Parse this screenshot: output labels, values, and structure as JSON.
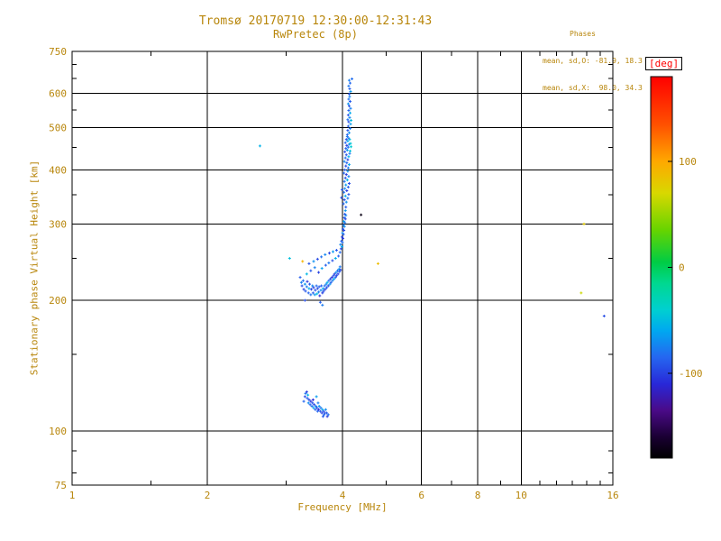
{
  "figure": {
    "title": "Tromsø 20170719 12:30:00-12:31:43",
    "subtitle": "RwPretec (8p)",
    "phases_header": "Phases",
    "phases_line1": "mean, sd,O: -81.9, 18.3",
    "phases_line2": "mean, sd,X:  98.0, 34.3",
    "colors": {
      "text_accent": "#b8860b",
      "deg_label": "#ff0000",
      "grid": "#000000",
      "background": "#ffffff"
    }
  },
  "chart_data": {
    "type": "scatter",
    "title": "Tromsø 20170719 12:30:00-12:31:43",
    "subtitle": "RwPretec (8p)",
    "xlabel": "Frequency [MHz]",
    "ylabel": "Stationary phase Virtual Height [km]",
    "x_scale": "log",
    "y_scale": "log",
    "xlim": [
      1,
      16
    ],
    "ylim": [
      75,
      750
    ],
    "x_ticks": [
      1,
      2,
      4,
      6,
      8,
      10,
      16
    ],
    "y_ticks": [
      75,
      100,
      200,
      300,
      400,
      500,
      600,
      750
    ],
    "x_minor_ticks": [
      1.5,
      3,
      5,
      7,
      9,
      11,
      12,
      13,
      14,
      15
    ],
    "y_minor_ticks": [
      80,
      90,
      150,
      250,
      350,
      450,
      550,
      650,
      700
    ],
    "grid": true,
    "colorbar": {
      "label": "[deg]",
      "ticks": [
        100,
        0,
        -100
      ],
      "range": [
        -180,
        180
      ]
    },
    "colormap": [
      [
        -180,
        "#000000"
      ],
      [
        -160,
        "#1a0033"
      ],
      [
        -135,
        "#4a0a88"
      ],
      [
        -110,
        "#2828d8"
      ],
      [
        -85,
        "#2566f0"
      ],
      [
        -60,
        "#00a8f0"
      ],
      [
        -40,
        "#00d0d0"
      ],
      [
        -15,
        "#00d890"
      ],
      [
        5,
        "#00cc44"
      ],
      [
        35,
        "#66d400"
      ],
      [
        70,
        "#d8d800"
      ],
      [
        100,
        "#ffa800"
      ],
      [
        135,
        "#ff5000"
      ],
      [
        180,
        "#ff0000"
      ]
    ],
    "points_format": [
      "frequency_mhz",
      "virtual_height_km",
      "phase_deg"
    ],
    "points": [
      [
        3.28,
        117,
        -85
      ],
      [
        3.3,
        120,
        -95
      ],
      [
        3.31,
        122,
        -78
      ],
      [
        3.33,
        123,
        -102
      ],
      [
        3.34,
        119,
        -88
      ],
      [
        3.36,
        116,
        -70
      ],
      [
        3.37,
        118,
        -98
      ],
      [
        3.39,
        115,
        -86
      ],
      [
        3.4,
        117,
        -105
      ],
      [
        3.42,
        114,
        -80
      ],
      [
        3.43,
        116,
        -92
      ],
      [
        3.45,
        113,
        -62
      ],
      [
        3.46,
        115,
        -99
      ],
      [
        3.48,
        112,
        -87
      ],
      [
        3.49,
        114,
        -74
      ],
      [
        3.51,
        113,
        -96
      ],
      [
        3.52,
        111,
        -84
      ],
      [
        3.54,
        112,
        -108
      ],
      [
        3.55,
        114,
        -68
      ],
      [
        3.57,
        111,
        -90
      ],
      [
        3.58,
        113,
        -79
      ],
      [
        3.6,
        110,
        -101
      ],
      [
        3.61,
        112,
        -58
      ],
      [
        3.63,
        111,
        -94
      ],
      [
        3.64,
        109,
        -83
      ],
      [
        3.66,
        110,
        -97
      ],
      [
        3.67,
        112,
        -72
      ],
      [
        3.69,
        110,
        -89
      ],
      [
        3.7,
        108,
        -103
      ],
      [
        3.72,
        109,
        -81
      ],
      [
        3.35,
        121,
        -55
      ],
      [
        3.44,
        118,
        -110
      ],
      [
        3.53,
        116,
        -76
      ],
      [
        3.62,
        108,
        -91
      ],
      [
        3.5,
        120,
        -64
      ],
      [
        3.22,
        226,
        -88
      ],
      [
        3.24,
        220,
        -75
      ],
      [
        3.25,
        216,
        -95
      ],
      [
        3.27,
        222,
        -82
      ],
      [
        3.28,
        212,
        -100
      ],
      [
        3.3,
        218,
        -68
      ],
      [
        3.31,
        210,
        -90
      ],
      [
        3.33,
        215,
        -78
      ],
      [
        3.34,
        221,
        -105
      ],
      [
        3.36,
        208,
        -85
      ],
      [
        3.37,
        213,
        -58
      ],
      [
        3.38,
        218,
        -92
      ],
      [
        3.4,
        206,
        -80
      ],
      [
        3.41,
        212,
        -98
      ],
      [
        3.43,
        216,
        -72
      ],
      [
        3.44,
        208,
        -88
      ],
      [
        3.45,
        214,
        -102
      ],
      [
        3.47,
        206,
        -65
      ],
      [
        3.48,
        211,
        -94
      ],
      [
        3.5,
        216,
        -83
      ],
      [
        3.51,
        207,
        -50
      ],
      [
        3.52,
        213,
        -96
      ],
      [
        3.54,
        209,
        -77
      ],
      [
        3.55,
        215,
        -89
      ],
      [
        3.56,
        205,
        -107
      ],
      [
        3.58,
        211,
        -70
      ],
      [
        3.59,
        216,
        -86
      ],
      [
        3.61,
        208,
        -99
      ],
      [
        3.62,
        213,
        -61
      ],
      [
        3.63,
        210,
        -93
      ],
      [
        3.65,
        216,
        -82
      ],
      [
        3.66,
        212,
        -104
      ],
      [
        3.68,
        218,
        -73
      ],
      [
        3.69,
        214,
        -90
      ],
      [
        3.7,
        220,
        -55
      ],
      [
        3.72,
        216,
        -97
      ],
      [
        3.73,
        222,
        -84
      ],
      [
        3.75,
        218,
        -66
      ],
      [
        3.76,
        224,
        -95
      ],
      [
        3.77,
        220,
        -87
      ],
      [
        3.79,
        226,
        -108
      ],
      [
        3.8,
        222,
        -76
      ],
      [
        3.82,
        228,
        -91
      ],
      [
        3.83,
        224,
        -59
      ],
      [
        3.84,
        230,
        -100
      ],
      [
        3.86,
        226,
        -85
      ],
      [
        3.87,
        232,
        -71
      ],
      [
        3.88,
        228,
        -96
      ],
      [
        3.9,
        234,
        -80
      ],
      [
        3.91,
        230,
        -103
      ],
      [
        3.93,
        236,
        -67
      ],
      [
        3.94,
        233,
        -89
      ],
      [
        3.95,
        239,
        -78
      ],
      [
        3.96,
        235,
        -98
      ],
      [
        3.33,
        230,
        -52
      ],
      [
        3.4,
        234,
        -90
      ],
      [
        3.47,
        238,
        -75
      ],
      [
        3.54,
        232,
        -100
      ],
      [
        3.6,
        237,
        -63
      ],
      [
        3.67,
        241,
        -88
      ],
      [
        3.73,
        244,
        -79
      ],
      [
        3.8,
        247,
        -94
      ],
      [
        3.86,
        250,
        -56
      ],
      [
        3.92,
        253,
        -86
      ],
      [
        3.37,
        243,
        -92
      ],
      [
        3.45,
        246,
        -69
      ],
      [
        3.52,
        249,
        -97
      ],
      [
        3.59,
        252,
        -81
      ],
      [
        3.66,
        255,
        -73
      ],
      [
        3.74,
        257,
        -99
      ],
      [
        3.81,
        259,
        -65
      ],
      [
        3.88,
        261,
        -90
      ],
      [
        3.57,
        198,
        -88
      ],
      [
        3.61,
        195,
        -77
      ],
      [
        3.3,
        200,
        -95
      ],
      [
        3.95,
        258,
        -84
      ],
      [
        3.97,
        263,
        -95
      ],
      [
        3.96,
        269,
        -72
      ],
      [
        3.98,
        274,
        -89
      ],
      [
        3.99,
        266,
        -60
      ],
      [
        3.99,
        280,
        -97
      ],
      [
        4.0,
        272,
        -82
      ],
      [
        4.0,
        286,
        -68
      ],
      [
        4.01,
        292,
        -91
      ],
      [
        4.01,
        278,
        -104
      ],
      [
        4.02,
        298,
        -76
      ],
      [
        4.02,
        284,
        -88
      ],
      [
        4.03,
        304,
        -63
      ],
      [
        4.03,
        290,
        -99
      ],
      [
        4.04,
        310,
        -85
      ],
      [
        4.04,
        296,
        -71
      ],
      [
        4.05,
        316,
        -93
      ],
      [
        4.05,
        302,
        -80
      ],
      [
        4.06,
        322,
        -66
      ],
      [
        4.06,
        308,
        -96
      ],
      [
        4.07,
        328,
        -87
      ],
      [
        4.07,
        314,
        -74
      ],
      [
        4.02,
        334,
        -86
      ],
      [
        4.08,
        337,
        -70
      ],
      [
        4.04,
        341,
        -94
      ],
      [
        4.11,
        344,
        -78
      ],
      [
        4.06,
        348,
        -59
      ],
      [
        4.13,
        351,
        -90
      ],
      [
        4.03,
        355,
        -82
      ],
      [
        4.09,
        358,
        -101
      ],
      [
        4.05,
        362,
        -73
      ],
      [
        4.12,
        365,
        -88
      ],
      [
        4.07,
        369,
        -64
      ],
      [
        4.14,
        372,
        -96
      ],
      [
        4.04,
        376,
        -80
      ],
      [
        4.1,
        379,
        -55
      ],
      [
        4.06,
        383,
        -92
      ],
      [
        4.13,
        386,
        -75
      ],
      [
        4.08,
        390,
        -103
      ],
      [
        4.03,
        393,
        -84
      ],
      [
        4.11,
        397,
        -69
      ],
      [
        4.05,
        400,
        -90
      ],
      [
        4.12,
        404,
        -78
      ],
      [
        4.07,
        408,
        -97
      ],
      [
        4.14,
        411,
        -62
      ],
      [
        4.09,
        415,
        -86
      ],
      [
        4.04,
        418,
        -74
      ],
      [
        4.11,
        422,
        -99
      ],
      [
        4.06,
        426,
        -81
      ],
      [
        4.13,
        429,
        -57
      ],
      [
        4.08,
        433,
        -91
      ],
      [
        4.15,
        436,
        -77
      ],
      [
        4.05,
        440,
        -95
      ],
      [
        4.1,
        444,
        -66
      ],
      [
        4.07,
        448,
        -88
      ],
      [
        4.12,
        451,
        -79
      ],
      [
        4.09,
        455,
        -100
      ],
      [
        4.14,
        458,
        -71
      ],
      [
        4.06,
        462,
        -85
      ],
      [
        4.11,
        466,
        -60
      ],
      [
        4.08,
        470,
        -93
      ],
      [
        4.13,
        473,
        -83
      ],
      [
        4.1,
        477,
        -75
      ],
      [
        4.16,
        442,
        -48
      ],
      [
        4.17,
        460,
        -45
      ],
      [
        4.15,
        470,
        -50
      ],
      [
        4.18,
        452,
        -42
      ],
      [
        3.99,
        360,
        -89
      ],
      [
        3.98,
        345,
        -96
      ],
      [
        4.1,
        482,
        -84
      ],
      [
        4.14,
        487,
        -70
      ],
      [
        4.11,
        493,
        -92
      ],
      [
        4.16,
        498,
        -78
      ],
      [
        4.12,
        504,
        -88
      ],
      [
        4.17,
        510,
        -63
      ],
      [
        4.13,
        516,
        -95
      ],
      [
        4.11,
        522,
        -80
      ],
      [
        4.15,
        528,
        -72
      ],
      [
        4.12,
        535,
        -90
      ],
      [
        4.16,
        541,
        -58
      ],
      [
        4.13,
        548,
        -86
      ],
      [
        4.17,
        554,
        -76
      ],
      [
        4.14,
        561,
        -94
      ],
      [
        4.12,
        568,
        -68
      ],
      [
        4.16,
        575,
        -89
      ],
      [
        4.13,
        582,
        -81
      ],
      [
        4.15,
        590,
        -73
      ],
      [
        4.14,
        598,
        -91
      ],
      [
        4.17,
        606,
        -65
      ],
      [
        4.15,
        615,
        -87
      ],
      [
        4.13,
        624,
        -79
      ],
      [
        4.16,
        634,
        -84
      ],
      [
        4.14,
        643,
        -76
      ],
      [
        4.2,
        648,
        -82
      ],
      [
        4.18,
        520,
        -50
      ],
      [
        2.62,
        454,
        -55
      ],
      [
        3.05,
        250,
        -48
      ],
      [
        3.26,
        246,
        92
      ],
      [
        4.8,
        243,
        86
      ],
      [
        4.4,
        315,
        -172
      ],
      [
        13.8,
        300,
        78
      ],
      [
        13.6,
        208,
        66
      ],
      [
        15.3,
        184,
        -96
      ]
    ]
  }
}
